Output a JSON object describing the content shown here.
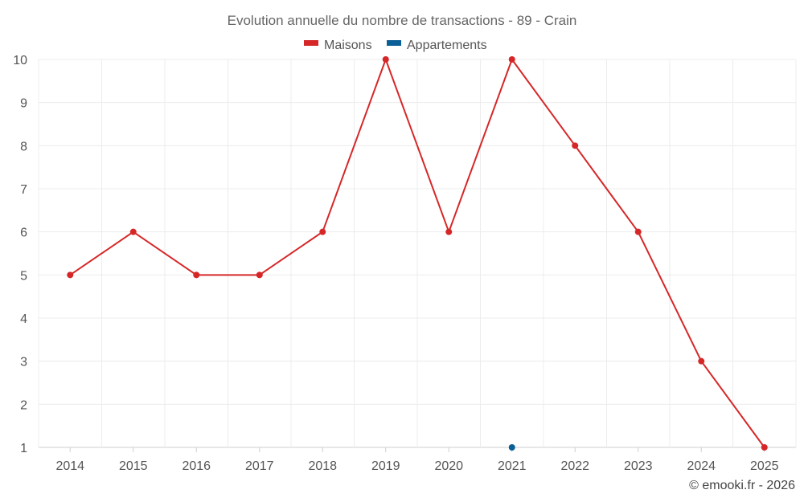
{
  "chart_data": {
    "type": "line",
    "title": "Evolution annuelle du nombre de transactions - 89 - Crain",
    "categories": [
      "2014",
      "2015",
      "2016",
      "2017",
      "2018",
      "2019",
      "2020",
      "2021",
      "2022",
      "2023",
      "2024",
      "2025"
    ],
    "series": [
      {
        "name": "Maisons",
        "color": "#d62728",
        "values": [
          5,
          6,
          5,
          5,
          6,
          10,
          6,
          10,
          8,
          6,
          3,
          1
        ]
      },
      {
        "name": "Appartements",
        "color": "#0b5f97",
        "values": [
          null,
          null,
          null,
          null,
          null,
          null,
          null,
          1,
          null,
          null,
          null,
          null
        ]
      }
    ],
    "ylim": [
      1,
      10
    ],
    "yticks": [
      1,
      2,
      3,
      4,
      5,
      6,
      7,
      8,
      9,
      10
    ],
    "xlabel": "",
    "ylabel": "",
    "grid": true,
    "legend": "top-center"
  },
  "credit": "© emooki.fr - 2026"
}
